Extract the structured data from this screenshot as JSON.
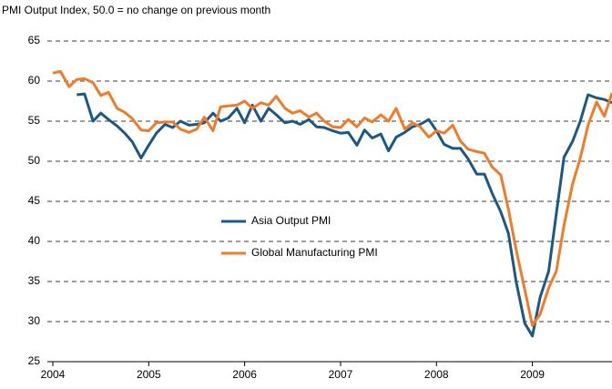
{
  "chart_data": {
    "type": "line",
    "title": "PMI Output Index, 50.0 = no change on previous month",
    "x": [
      2004,
      2004.08,
      2004.17,
      2004.25,
      2004.33,
      2004.42,
      2004.5,
      2004.58,
      2004.67,
      2004.75,
      2004.83,
      2004.92,
      2005,
      2005.08,
      2005.17,
      2005.25,
      2005.33,
      2005.42,
      2005.5,
      2005.58,
      2005.67,
      2005.75,
      2005.83,
      2005.92,
      2006,
      2006.08,
      2006.17,
      2006.25,
      2006.33,
      2006.42,
      2006.5,
      2006.58,
      2006.67,
      2006.75,
      2006.83,
      2006.92,
      2007,
      2007.08,
      2007.17,
      2007.25,
      2007.33,
      2007.42,
      2007.5,
      2007.58,
      2007.67,
      2007.75,
      2007.83,
      2007.92,
      2008,
      2008.08,
      2008.17,
      2008.25,
      2008.33,
      2008.42,
      2008.5,
      2008.58,
      2008.67,
      2008.75,
      2008.83,
      2008.92,
      2009,
      2009.08,
      2009.17,
      2009.25,
      2009.33,
      2009.42,
      2009.5,
      2009.58,
      2009.67,
      2009.75,
      2009.83
    ],
    "series": [
      {
        "name": "Asia Output PMI",
        "color": "#1c5886",
        "values": [
          null,
          null,
          null,
          58.3,
          58.4,
          55.0,
          56.0,
          55.2,
          54.4,
          53.5,
          52.4,
          50.4,
          52.0,
          53.5,
          54.6,
          54.2,
          55.0,
          54.5,
          54.6,
          54.8,
          56.0,
          55.0,
          55.4,
          56.6,
          54.8,
          57.0,
          55.0,
          56.6,
          55.8,
          54.8,
          55.0,
          54.6,
          55.2,
          54.3,
          54.2,
          53.8,
          53.5,
          53.6,
          52.0,
          53.9,
          52.9,
          53.4,
          51.3,
          53.0,
          53.6,
          54.3,
          54.6,
          55.2,
          53.8,
          52.1,
          51.6,
          51.6,
          50.3,
          48.4,
          48.4,
          46.0,
          43.7,
          41.0,
          35.0,
          29.8,
          28.2,
          33.0,
          36.3,
          43.5,
          50.5,
          52.5,
          55.0,
          58.3,
          57.9,
          57.7,
          57.3
        ]
      },
      {
        "name": "Global Manufacturing PMI",
        "color": "#f07c2a",
        "values": [
          61.0,
          61.2,
          59.3,
          60.2,
          60.3,
          59.8,
          58.2,
          58.6,
          56.6,
          56.1,
          55.3,
          53.9,
          53.8,
          54.8,
          54.9,
          54.9,
          54.0,
          53.6,
          54.0,
          55.5,
          53.8,
          56.8,
          56.9,
          57.0,
          57.5,
          56.6,
          57.3,
          57.0,
          58.1,
          56.6,
          56.0,
          56.3,
          55.5,
          56.0,
          55.0,
          54.3,
          54.2,
          55.2,
          54.3,
          55.4,
          54.9,
          55.8,
          55.0,
          56.6,
          54.0,
          54.8,
          54.3,
          53.0,
          53.8,
          53.5,
          54.5,
          52.5,
          51.5,
          51.2,
          51.0,
          49.3,
          48.3,
          44.0,
          39.0,
          34.0,
          29.5,
          30.9,
          34.2,
          36.3,
          42.0,
          47.2,
          50.4,
          54.5,
          57.4,
          55.6,
          58.5
        ]
      }
    ],
    "xlim": [
      2004,
      2009.83
    ],
    "xticks": [
      2004,
      2005,
      2006,
      2007,
      2008,
      2009
    ],
    "ylim": [
      25,
      65
    ],
    "yticks": [
      25,
      30,
      35,
      40,
      45,
      50,
      55,
      60,
      65
    ],
    "grid": true
  }
}
